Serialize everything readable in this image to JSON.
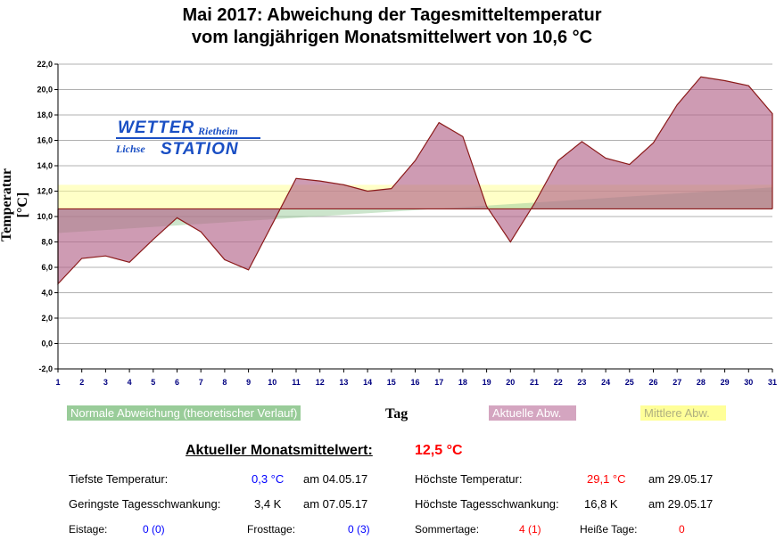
{
  "title_line1": "Mai 2017: Abweichung der Tagesmitteltemperatur",
  "title_line2": "vom langjährigen Monatsmittelwert von 10,6 °C",
  "logo": {
    "word1": "WETTER",
    "word2": "Rietheim",
    "word3": "Lichse",
    "word4": "STATION"
  },
  "chart_data": {
    "type": "area",
    "xlabel": "Tag",
    "ylabel": "Temperatur [°C]",
    "ylim": [
      -2,
      22
    ],
    "yticks": [
      -2,
      0,
      2,
      4,
      6,
      8,
      10,
      12,
      14,
      16,
      18,
      20,
      22
    ],
    "ytick_labels": [
      "-2,0",
      "0,0",
      "2,0",
      "4,0",
      "6,0",
      "8,0",
      "10,0",
      "12,0",
      "14,0",
      "16,0",
      "18,0",
      "20,0",
      "22,0"
    ],
    "x": [
      1,
      2,
      3,
      4,
      5,
      6,
      7,
      8,
      9,
      10,
      11,
      12,
      13,
      14,
      15,
      16,
      17,
      18,
      19,
      20,
      21,
      22,
      23,
      24,
      25,
      26,
      27,
      28,
      29,
      30,
      31
    ],
    "baseline": 10.6,
    "series": [
      {
        "name": "Aktuelle Abw.",
        "color": "#b3668a",
        "values": [
          4.7,
          6.7,
          6.9,
          6.4,
          8.2,
          9.9,
          8.8,
          6.6,
          5.8,
          9.4,
          13.0,
          12.8,
          12.5,
          12.0,
          12.2,
          14.4,
          17.4,
          16.3,
          10.8,
          8.0,
          11.0,
          14.4,
          15.9,
          14.6,
          14.1,
          15.8,
          18.8,
          21.0,
          20.7,
          20.3,
          18.1
        ]
      },
      {
        "name": "Normale Abweichung (theoretischer Verlauf)",
        "color": "#99cc99",
        "values_start_end": [
          8.7,
          12.3
        ]
      },
      {
        "name": "Mittlere Abw.",
        "color": "#ffff99",
        "value": 12.5
      }
    ],
    "grid": true,
    "legend": "bottom"
  },
  "stats": {
    "mean_label": "Aktueller Monatsmittelwert:",
    "mean_value": "12,5 °C",
    "min_label": "Tiefste Temperatur:",
    "min_value": "0,3 °C",
    "min_date": "am 04.05.17",
    "max_label": "Höchste Temperatur:",
    "max_value": "29,1 °C",
    "max_date": "am 29.05.17",
    "minswing_label": "Geringste Tagesschwankung:",
    "minswing_value": "3,4 K",
    "minswing_date": "am 07.05.17",
    "maxswing_label": "Höchste Tagesschwankung:",
    "maxswing_value": "16,8 K",
    "maxswing_date": "am 29.05.17",
    "eis_label": "Eistage:",
    "eis_value": "0 (0)",
    "frost_label": "Frosttage:",
    "frost_value": "0 (3)",
    "sommer_label": "Sommertage:",
    "sommer_value": "4 (1)",
    "heiss_label": "Heiße Tage:",
    "heiss_value": "0"
  }
}
